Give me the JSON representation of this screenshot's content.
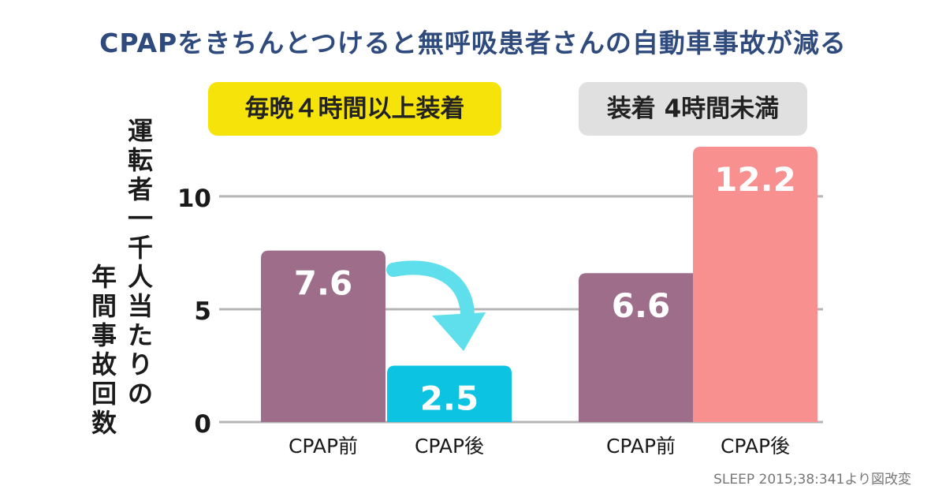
{
  "title": "CPAPをきちんとつけると無呼吸患者さんの自動車事故が減る",
  "source": "SLEEP 2015;38:341より図改変",
  "colors": {
    "title": "#2f4a7d",
    "before": "#9e6d89",
    "after_compliant": "#0cc3e2",
    "after_noncompliant": "#f99090",
    "arrow": "#5fdfec",
    "group1_label_bg": "#f6e30a",
    "group2_label_bg": "#e0e0e0",
    "grid": "#b5b5b5"
  },
  "chart_data": {
    "type": "bar",
    "ylabel": "運転者一千人当たりの年間事故回数",
    "ylabel_lines": [
      "運転者一千人当たりの",
      "年間事故回数"
    ],
    "ylim": [
      0,
      12.2
    ],
    "yticks": [
      0,
      5,
      10
    ],
    "grid": true,
    "groups": [
      {
        "label": "毎晩４時間以上装着",
        "bars": [
          {
            "category": "CPAP前",
            "value": 7.6,
            "value_label": "7.6",
            "color": "#9e6d89"
          },
          {
            "category": "CPAP後",
            "value": 2.5,
            "value_label": "2.5",
            "color": "#0cc3e2"
          }
        ]
      },
      {
        "label": "装着 4時間未満",
        "bars": [
          {
            "category": "CPAP前",
            "value": 6.6,
            "value_label": "6.6",
            "color": "#9e6d89"
          },
          {
            "category": "CPAP後",
            "value": 12.2,
            "value_label": "12.2",
            "color": "#f99090"
          }
        ]
      }
    ]
  }
}
